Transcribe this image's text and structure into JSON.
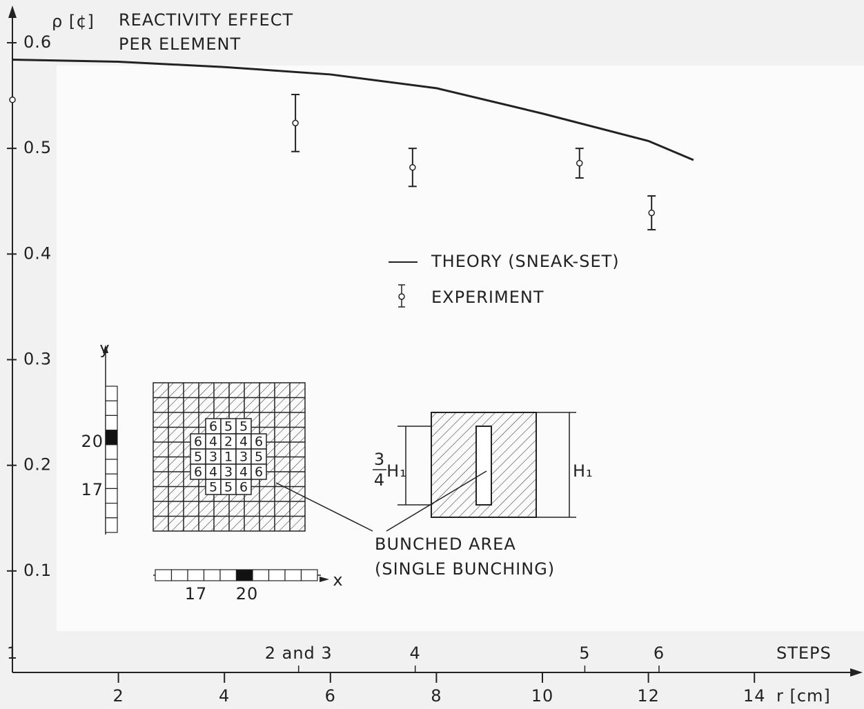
{
  "chart_data": {
    "type": "line",
    "title": [
      "REACTIVITY EFFECT",
      "PER ELEMENT"
    ],
    "y_label": "ρ [¢]",
    "x_label": "r [cm]",
    "xlim": [
      0,
      16
    ],
    "xticks": [
      2,
      4,
      6,
      8,
      10,
      12,
      14
    ],
    "ylim": [
      0,
      0.63
    ],
    "yticks": [
      0.1,
      0.2,
      0.3,
      0.4,
      0.5,
      0.6
    ],
    "steps": {
      "title": "STEPS",
      "x": [
        0,
        5.4,
        7.6,
        10.8,
        12.2
      ],
      "labels": [
        "1",
        "2 and 3",
        "4",
        "5",
        "6"
      ]
    },
    "series": [
      {
        "name": "THEORY (SNEAK-SET)",
        "kind": "line",
        "color": "#222222",
        "x": [
          0,
          2,
          4,
          6,
          8,
          10,
          12,
          12.85
        ],
        "values": [
          0.584,
          0.582,
          0.577,
          0.57,
          0.557,
          0.533,
          0.507,
          0.489
        ]
      },
      {
        "name": "EXPERIMENT",
        "kind": "errorbar",
        "color": "#222222",
        "x": [
          0,
          5.34,
          7.55,
          10.7,
          12.06
        ],
        "values": [
          0.546,
          0.524,
          0.482,
          0.486,
          0.439
        ],
        "errors": [
          null,
          0.027,
          0.018,
          0.014,
          0.016
        ]
      }
    ],
    "inset": {
      "y_axis": "y",
      "x_axis": "x",
      "y_labels": [
        20,
        17
      ],
      "x_labels": [
        17,
        20
      ],
      "grid": [
        [
          6,
          5,
          5
        ],
        [
          6,
          4,
          2,
          4,
          6
        ],
        [
          5,
          3,
          1,
          3,
          5
        ],
        [
          6,
          4,
          3,
          4,
          6
        ],
        [
          5,
          5,
          6
        ]
      ],
      "fraction": [
        "3",
        "4"
      ],
      "height": "H₁",
      "caption": [
        "BUNCHED AREA",
        "(SINGLE BUNCHING)"
      ]
    }
  }
}
